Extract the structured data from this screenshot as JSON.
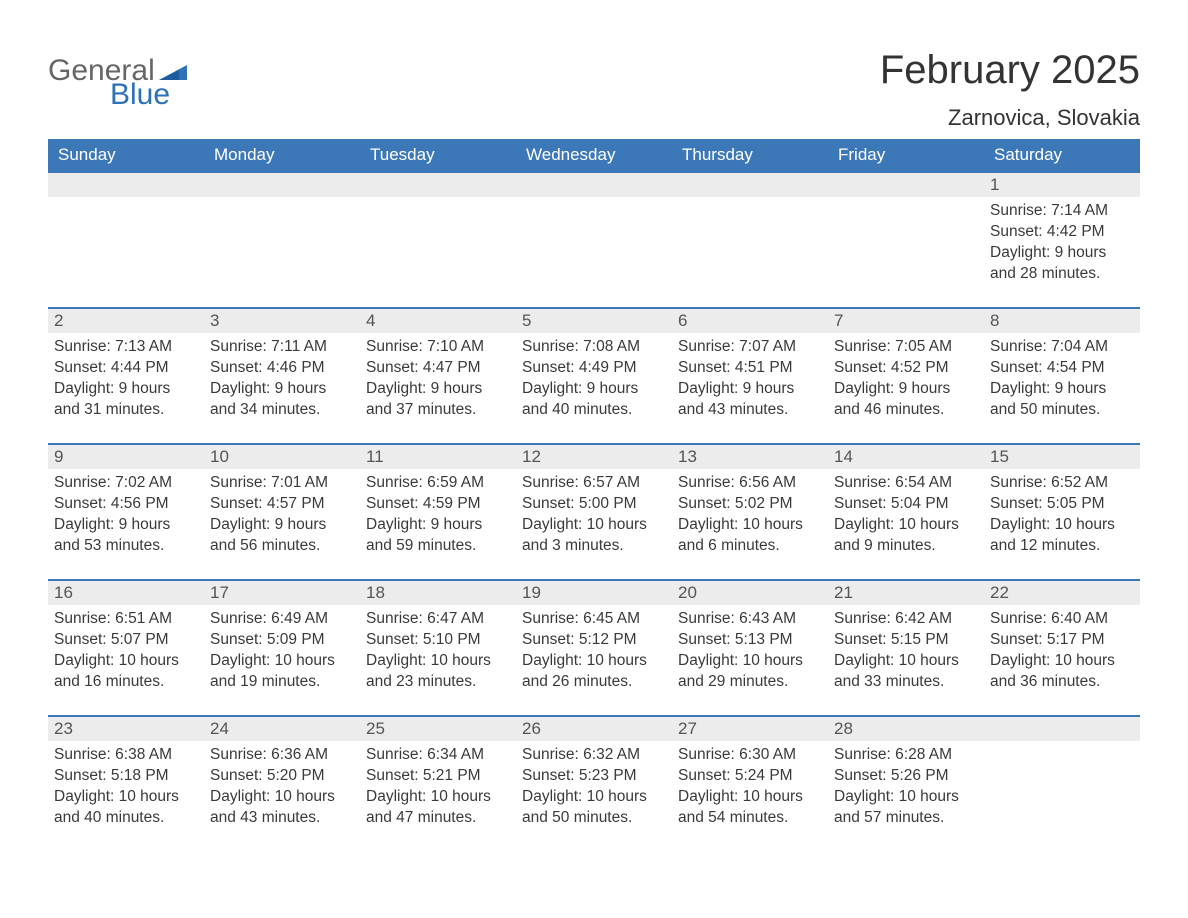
{
  "logo": {
    "text1": "General",
    "text2": "Blue"
  },
  "title": "February 2025",
  "location": "Zarnovica, Slovakia",
  "colors": {
    "header_bg": "#3c78b8",
    "header_text": "#ffffff",
    "daynum_bg": "#ececec",
    "daynum_border": "#3c78b8",
    "body_text": "#3a3a3a",
    "logo_gray": "#666666",
    "logo_blue": "#2d71b8"
  },
  "weekdays": [
    "Sunday",
    "Monday",
    "Tuesday",
    "Wednesday",
    "Thursday",
    "Friday",
    "Saturday"
  ],
  "weeks": [
    [
      {
        "n": "",
        "sr": "",
        "ss": "",
        "d1": "",
        "d2": ""
      },
      {
        "n": "",
        "sr": "",
        "ss": "",
        "d1": "",
        "d2": ""
      },
      {
        "n": "",
        "sr": "",
        "ss": "",
        "d1": "",
        "d2": ""
      },
      {
        "n": "",
        "sr": "",
        "ss": "",
        "d1": "",
        "d2": ""
      },
      {
        "n": "",
        "sr": "",
        "ss": "",
        "d1": "",
        "d2": ""
      },
      {
        "n": "",
        "sr": "",
        "ss": "",
        "d1": "",
        "d2": ""
      },
      {
        "n": "1",
        "sr": "Sunrise: 7:14 AM",
        "ss": "Sunset: 4:42 PM",
        "d1": "Daylight: 9 hours",
        "d2": "and 28 minutes."
      }
    ],
    [
      {
        "n": "2",
        "sr": "Sunrise: 7:13 AM",
        "ss": "Sunset: 4:44 PM",
        "d1": "Daylight: 9 hours",
        "d2": "and 31 minutes."
      },
      {
        "n": "3",
        "sr": "Sunrise: 7:11 AM",
        "ss": "Sunset: 4:46 PM",
        "d1": "Daylight: 9 hours",
        "d2": "and 34 minutes."
      },
      {
        "n": "4",
        "sr": "Sunrise: 7:10 AM",
        "ss": "Sunset: 4:47 PM",
        "d1": "Daylight: 9 hours",
        "d2": "and 37 minutes."
      },
      {
        "n": "5",
        "sr": "Sunrise: 7:08 AM",
        "ss": "Sunset: 4:49 PM",
        "d1": "Daylight: 9 hours",
        "d2": "and 40 minutes."
      },
      {
        "n": "6",
        "sr": "Sunrise: 7:07 AM",
        "ss": "Sunset: 4:51 PM",
        "d1": "Daylight: 9 hours",
        "d2": "and 43 minutes."
      },
      {
        "n": "7",
        "sr": "Sunrise: 7:05 AM",
        "ss": "Sunset: 4:52 PM",
        "d1": "Daylight: 9 hours",
        "d2": "and 46 minutes."
      },
      {
        "n": "8",
        "sr": "Sunrise: 7:04 AM",
        "ss": "Sunset: 4:54 PM",
        "d1": "Daylight: 9 hours",
        "d2": "and 50 minutes."
      }
    ],
    [
      {
        "n": "9",
        "sr": "Sunrise: 7:02 AM",
        "ss": "Sunset: 4:56 PM",
        "d1": "Daylight: 9 hours",
        "d2": "and 53 minutes."
      },
      {
        "n": "10",
        "sr": "Sunrise: 7:01 AM",
        "ss": "Sunset: 4:57 PM",
        "d1": "Daylight: 9 hours",
        "d2": "and 56 minutes."
      },
      {
        "n": "11",
        "sr": "Sunrise: 6:59 AM",
        "ss": "Sunset: 4:59 PM",
        "d1": "Daylight: 9 hours",
        "d2": "and 59 minutes."
      },
      {
        "n": "12",
        "sr": "Sunrise: 6:57 AM",
        "ss": "Sunset: 5:00 PM",
        "d1": "Daylight: 10 hours",
        "d2": "and 3 minutes."
      },
      {
        "n": "13",
        "sr": "Sunrise: 6:56 AM",
        "ss": "Sunset: 5:02 PM",
        "d1": "Daylight: 10 hours",
        "d2": "and 6 minutes."
      },
      {
        "n": "14",
        "sr": "Sunrise: 6:54 AM",
        "ss": "Sunset: 5:04 PM",
        "d1": "Daylight: 10 hours",
        "d2": "and 9 minutes."
      },
      {
        "n": "15",
        "sr": "Sunrise: 6:52 AM",
        "ss": "Sunset: 5:05 PM",
        "d1": "Daylight: 10 hours",
        "d2": "and 12 minutes."
      }
    ],
    [
      {
        "n": "16",
        "sr": "Sunrise: 6:51 AM",
        "ss": "Sunset: 5:07 PM",
        "d1": "Daylight: 10 hours",
        "d2": "and 16 minutes."
      },
      {
        "n": "17",
        "sr": "Sunrise: 6:49 AM",
        "ss": "Sunset: 5:09 PM",
        "d1": "Daylight: 10 hours",
        "d2": "and 19 minutes."
      },
      {
        "n": "18",
        "sr": "Sunrise: 6:47 AM",
        "ss": "Sunset: 5:10 PM",
        "d1": "Daylight: 10 hours",
        "d2": "and 23 minutes."
      },
      {
        "n": "19",
        "sr": "Sunrise: 6:45 AM",
        "ss": "Sunset: 5:12 PM",
        "d1": "Daylight: 10 hours",
        "d2": "and 26 minutes."
      },
      {
        "n": "20",
        "sr": "Sunrise: 6:43 AM",
        "ss": "Sunset: 5:13 PM",
        "d1": "Daylight: 10 hours",
        "d2": "and 29 minutes."
      },
      {
        "n": "21",
        "sr": "Sunrise: 6:42 AM",
        "ss": "Sunset: 5:15 PM",
        "d1": "Daylight: 10 hours",
        "d2": "and 33 minutes."
      },
      {
        "n": "22",
        "sr": "Sunrise: 6:40 AM",
        "ss": "Sunset: 5:17 PM",
        "d1": "Daylight: 10 hours",
        "d2": "and 36 minutes."
      }
    ],
    [
      {
        "n": "23",
        "sr": "Sunrise: 6:38 AM",
        "ss": "Sunset: 5:18 PM",
        "d1": "Daylight: 10 hours",
        "d2": "and 40 minutes."
      },
      {
        "n": "24",
        "sr": "Sunrise: 6:36 AM",
        "ss": "Sunset: 5:20 PM",
        "d1": "Daylight: 10 hours",
        "d2": "and 43 minutes."
      },
      {
        "n": "25",
        "sr": "Sunrise: 6:34 AM",
        "ss": "Sunset: 5:21 PM",
        "d1": "Daylight: 10 hours",
        "d2": "and 47 minutes."
      },
      {
        "n": "26",
        "sr": "Sunrise: 6:32 AM",
        "ss": "Sunset: 5:23 PM",
        "d1": "Daylight: 10 hours",
        "d2": "and 50 minutes."
      },
      {
        "n": "27",
        "sr": "Sunrise: 6:30 AM",
        "ss": "Sunset: 5:24 PM",
        "d1": "Daylight: 10 hours",
        "d2": "and 54 minutes."
      },
      {
        "n": "28",
        "sr": "Sunrise: 6:28 AM",
        "ss": "Sunset: 5:26 PM",
        "d1": "Daylight: 10 hours",
        "d2": "and 57 minutes."
      },
      {
        "n": "",
        "sr": "",
        "ss": "",
        "d1": "",
        "d2": ""
      }
    ]
  ]
}
